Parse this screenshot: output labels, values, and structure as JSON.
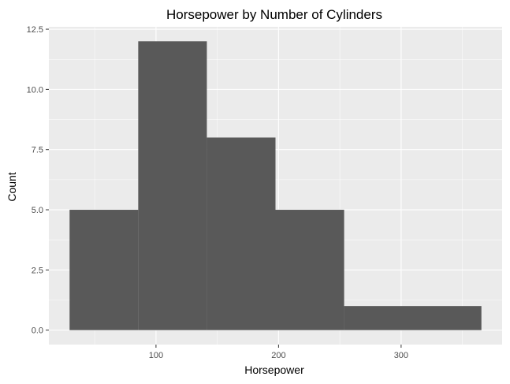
{
  "chart_data": {
    "type": "histogram",
    "title": "Horsepower by Number of Cylinders",
    "xlabel": "Horsepower",
    "ylabel": "Count",
    "bins": [
      {
        "x0": 29.5,
        "x1": 85.5,
        "count": 5
      },
      {
        "x0": 85.5,
        "x1": 141.5,
        "count": 12
      },
      {
        "x0": 141.5,
        "x1": 197.5,
        "count": 8
      },
      {
        "x0": 197.5,
        "x1": 253.5,
        "count": 5
      },
      {
        "x0": 253.5,
        "x1": 365.5,
        "count": 1
      }
    ],
    "xlim": [
      12.6,
      382.4
    ],
    "ylim": [
      -0.6,
      12.6
    ],
    "x_ticks": [
      {
        "value": 100,
        "label": "100"
      },
      {
        "value": 200,
        "label": "200"
      },
      {
        "value": 300,
        "label": "300"
      }
    ],
    "y_ticks": [
      {
        "value": 0,
        "label": "0.0"
      },
      {
        "value": 2.5,
        "label": "2.5"
      },
      {
        "value": 5,
        "label": "5.0"
      },
      {
        "value": 7.5,
        "label": "7.5"
      },
      {
        "value": 10,
        "label": "10.0"
      },
      {
        "value": 12.5,
        "label": "12.5"
      }
    ],
    "grid": true,
    "colors": {
      "panel": "#ebebeb",
      "bar": "#595959",
      "grid_major": "#ffffff",
      "tick": "#333333"
    }
  }
}
